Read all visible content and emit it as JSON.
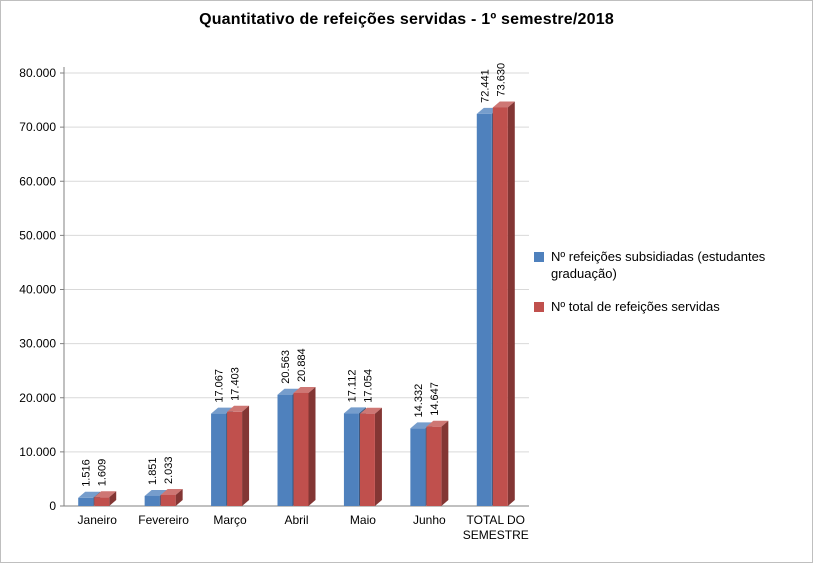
{
  "chart_data": {
    "type": "bar",
    "style": "3d-clustered-column",
    "title": "Quantitativo de refeições servidas - 1º semestre/2018",
    "categories": [
      "Janeiro",
      "Fevereiro",
      "Março",
      "Abril",
      "Maio",
      "Junho",
      "TOTAL DO SEMESTRE"
    ],
    "series": [
      {
        "name": "Nº refeições subsidiadas (estudantes graduação)",
        "color": "#4F81BD",
        "values": [
          1516,
          1851,
          17067,
          20563,
          17112,
          14332,
          72441
        ],
        "labels": [
          "1.516",
          "1.851",
          "17.067",
          "20.563",
          "17.112",
          "14.332",
          "72.441"
        ]
      },
      {
        "name": "Nº total de refeições servidas",
        "color": "#C0504D",
        "values": [
          1609,
          2033,
          17403,
          20884,
          17054,
          14647,
          73630
        ],
        "labels": [
          "1.609",
          "2.033",
          "17.403",
          "20.884",
          "17.054",
          "14.647",
          "73.630"
        ]
      }
    ],
    "xlabel": "",
    "ylabel": "",
    "ylim": [
      0,
      80000
    ],
    "ytick_step": 10000,
    "ytick_labels": [
      "0",
      "10.000",
      "20.000",
      "30.000",
      "40.000",
      "50.000",
      "60.000",
      "70.000",
      "80.000"
    ],
    "grid": true,
    "legend_position": "right",
    "axis_color": "#808080",
    "gridline_color": "#D9D9D9",
    "label_color": "#000000"
  }
}
